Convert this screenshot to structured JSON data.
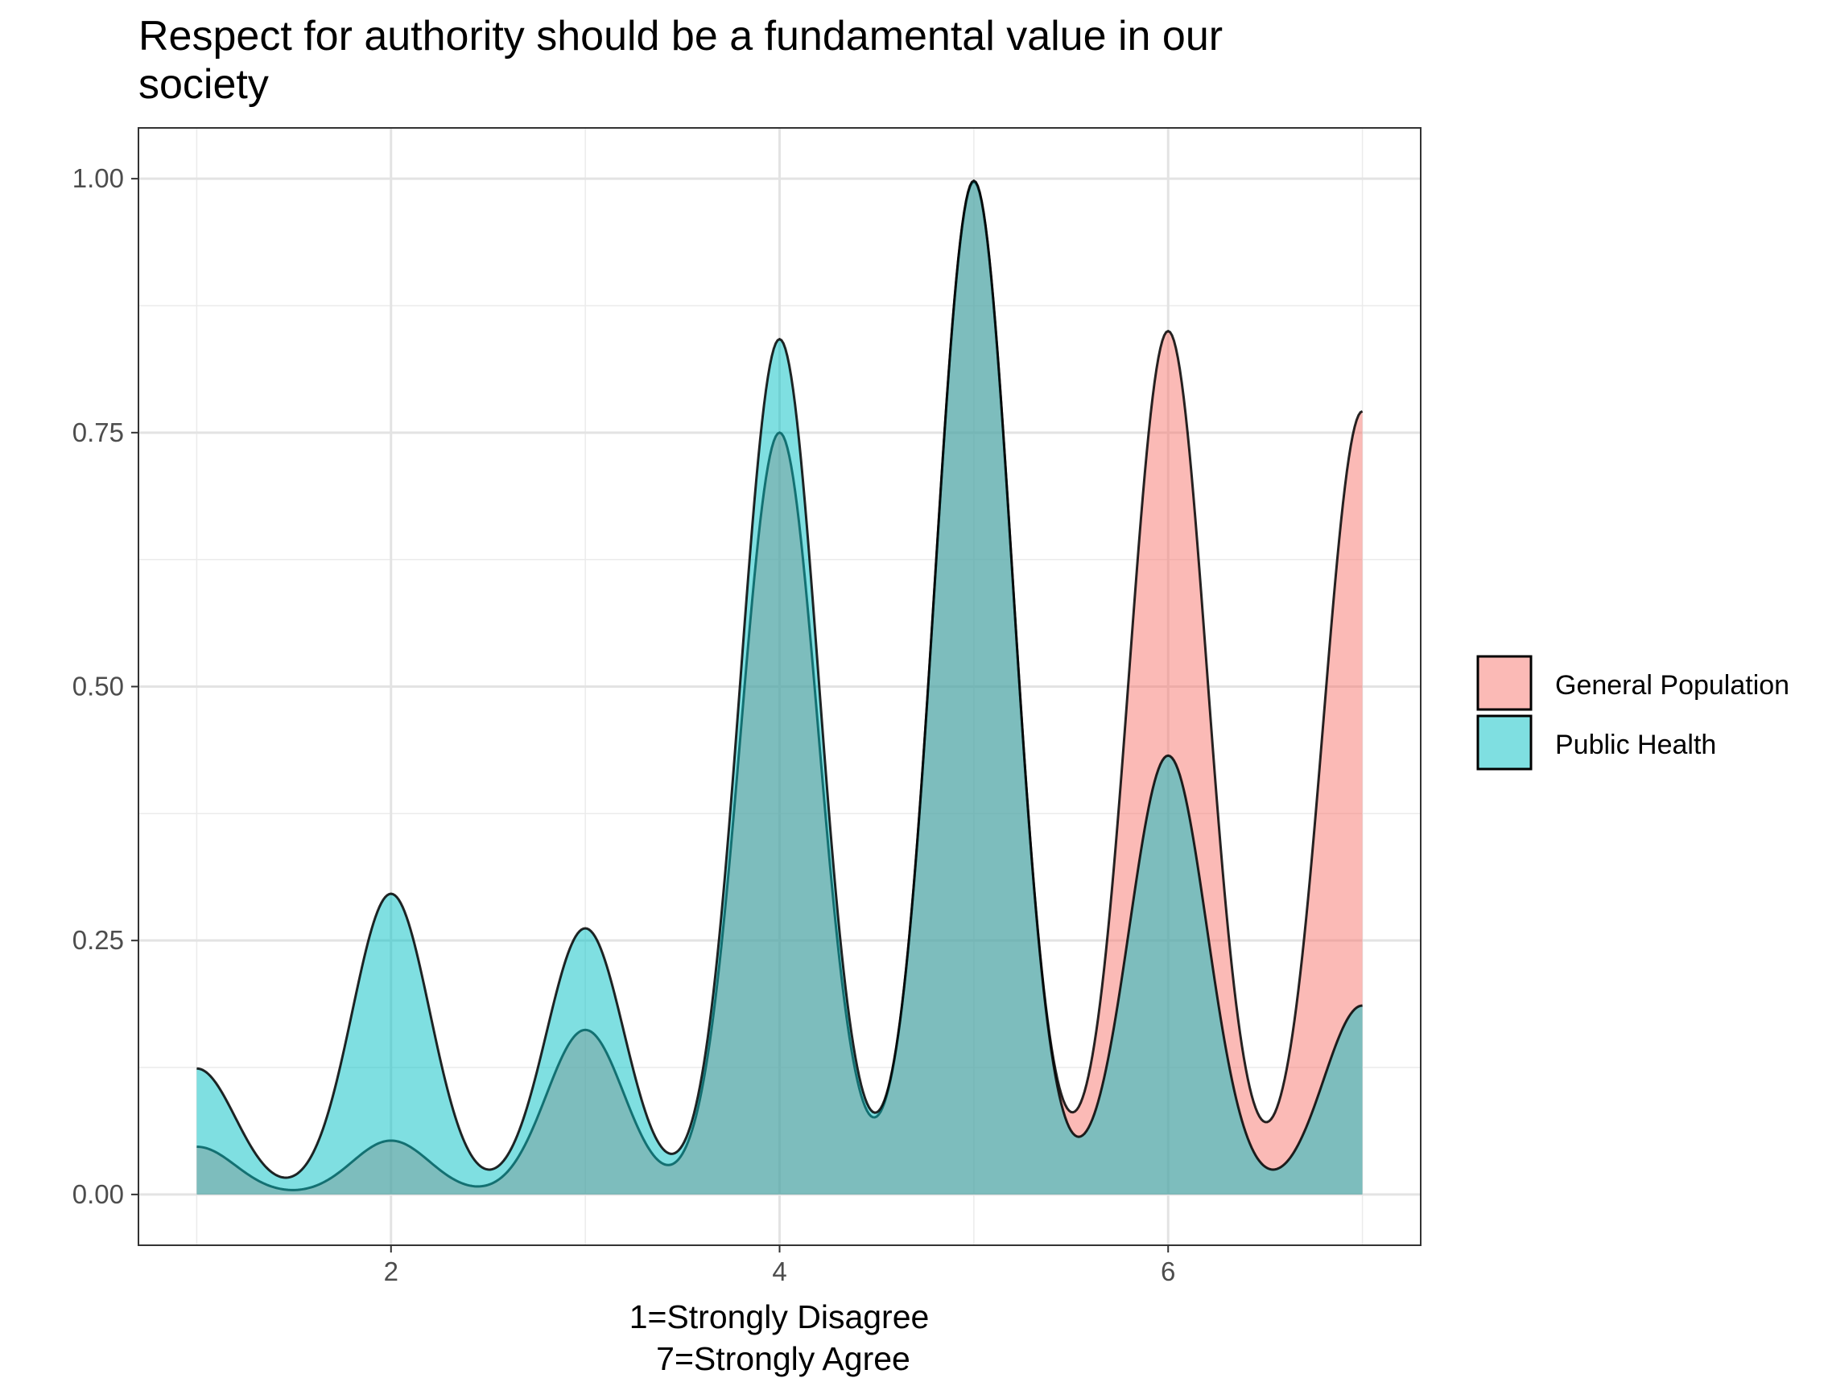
{
  "chart_data": {
    "type": "area",
    "title_lines": [
      "Respect for authority should be a fundamental value in our",
      "society"
    ],
    "xlabel_lines": [
      "1=Strongly Disagree",
      "7=Strongly Agree"
    ],
    "ylabel": "",
    "xlim": [
      0.7,
      7.3
    ],
    "ylim": [
      -0.05,
      1.05
    ],
    "x_ticks": [
      2,
      4,
      6
    ],
    "x_tick_labels": [
      "2",
      "4",
      "6"
    ],
    "y_ticks": [
      0,
      0.25,
      0.5,
      0.75,
      1.0
    ],
    "y_tick_labels": [
      "0.00",
      "0.25",
      "0.50",
      "0.75",
      "1.00"
    ],
    "grid": true,
    "legend_position": "right",
    "x_range": [
      1,
      7
    ],
    "series": [
      {
        "name": "General Population",
        "color": "#F8766D",
        "centers": [
          1,
          2,
          3,
          4,
          5,
          6,
          7
        ],
        "weights": [
          0.047,
          0.053,
          0.162,
          0.75,
          0.997,
          0.85,
          0.771
        ],
        "bandwidth": 0.2
      },
      {
        "name": "Public Health",
        "color": "#00BFC4",
        "centers": [
          1,
          2,
          3,
          4,
          5,
          6,
          7
        ],
        "weights": [
          0.124,
          0.296,
          0.262,
          0.842,
          0.998,
          0.432,
          0.186
        ],
        "bandwidth": 0.2
      }
    ]
  }
}
